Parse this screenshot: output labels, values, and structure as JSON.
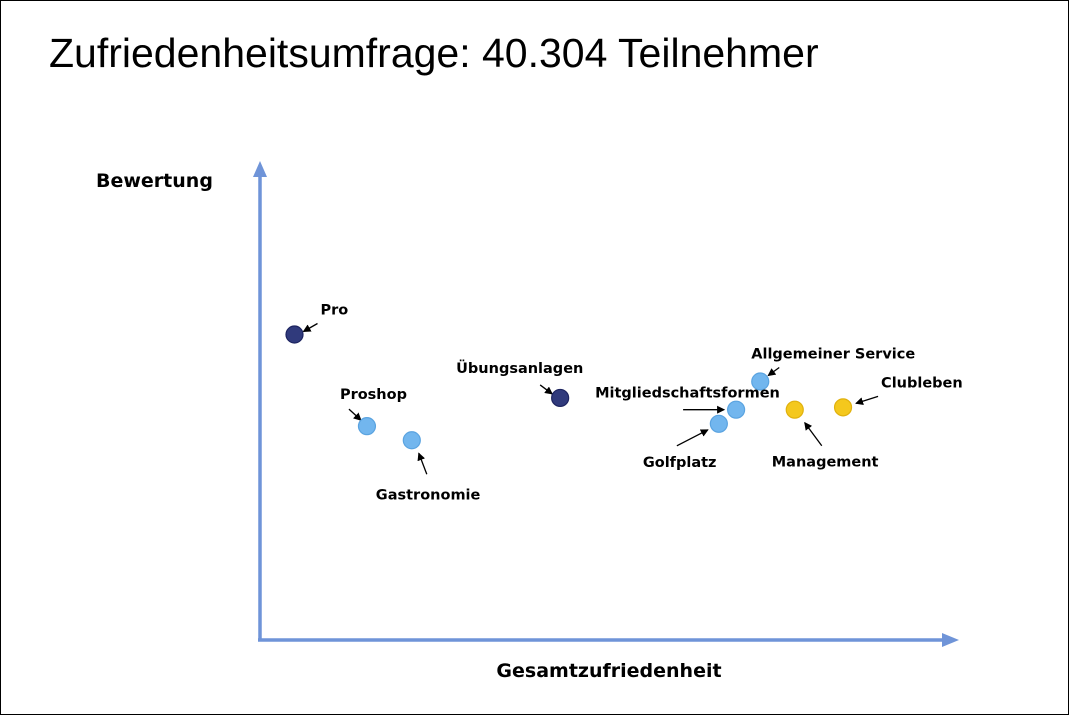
{
  "slide": {
    "title": "Zufriedenheitsumfrage: 40.304 Teilnehmer"
  },
  "colors": {
    "axis": "#6f94d8",
    "dark": "#303a7c",
    "light": "#72b6ee",
    "yellow": "#f4c81d"
  },
  "chart_data": {
    "type": "scatter",
    "xlabel": "Gesamtzufriedenheit",
    "ylabel": "Bewertung",
    "xlim": [
      0,
      100
    ],
    "ylim": [
      0,
      100
    ],
    "grid": false,
    "points": [
      {
        "label": "Pro",
        "x": 5,
        "y": 65,
        "color": "dark"
      },
      {
        "label": "Proshop",
        "x": 15.5,
        "y": 45.5,
        "color": "light"
      },
      {
        "label": "Gastronomie",
        "x": 22,
        "y": 42.5,
        "color": "light"
      },
      {
        "label": "Übungsanlagen",
        "x": 43.5,
        "y": 51.5,
        "color": "dark"
      },
      {
        "label": "Allgemeiner Service",
        "x": 72.5,
        "y": 55,
        "color": "light"
      },
      {
        "label": "Mitgliedschaftsformen",
        "x": 69,
        "y": 49,
        "color": "light"
      },
      {
        "label": "Golfplatz",
        "x": 66.5,
        "y": 46,
        "color": "light"
      },
      {
        "label": "Management",
        "x": 77.5,
        "y": 49,
        "color": "yellow"
      },
      {
        "label": "Clubleben",
        "x": 84.5,
        "y": 49.5,
        "color": "yellow"
      }
    ]
  }
}
